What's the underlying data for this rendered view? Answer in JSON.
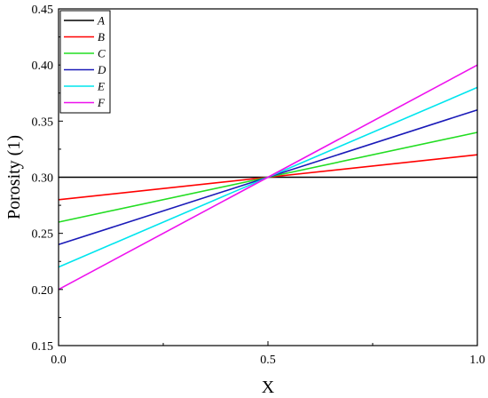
{
  "chart_data": {
    "type": "line",
    "xlabel": "X",
    "ylabel": "Porosity (1)",
    "xlim": [
      0.0,
      1.0
    ],
    "ylim": [
      0.15,
      0.45
    ],
    "x_ticks": [
      "0.0",
      "0.5",
      "1.0"
    ],
    "y_ticks": [
      "0.15",
      "0.20",
      "0.25",
      "0.30",
      "0.35",
      "0.40",
      "0.45"
    ],
    "grid": false,
    "legend_position": "top-left",
    "series": [
      {
        "name": "A",
        "color": "#000000",
        "x": [
          0.0,
          0.5,
          1.0
        ],
        "y": [
          0.3,
          0.3,
          0.3
        ]
      },
      {
        "name": "B",
        "color": "#ff0000",
        "x": [
          0.0,
          0.5,
          1.0
        ],
        "y": [
          0.28,
          0.3,
          0.32
        ]
      },
      {
        "name": "C",
        "color": "#22dd22",
        "x": [
          0.0,
          0.5,
          1.0
        ],
        "y": [
          0.26,
          0.3,
          0.34
        ]
      },
      {
        "name": "D",
        "color": "#1a1ab8",
        "x": [
          0.0,
          0.5,
          1.0
        ],
        "y": [
          0.24,
          0.3,
          0.36
        ]
      },
      {
        "name": "E",
        "color": "#00e5ee",
        "x": [
          0.0,
          0.5,
          1.0
        ],
        "y": [
          0.22,
          0.3,
          0.38
        ]
      },
      {
        "name": "F",
        "color": "#ee11ee",
        "x": [
          0.0,
          0.5,
          1.0
        ],
        "y": [
          0.2,
          0.3,
          0.4
        ]
      }
    ]
  }
}
